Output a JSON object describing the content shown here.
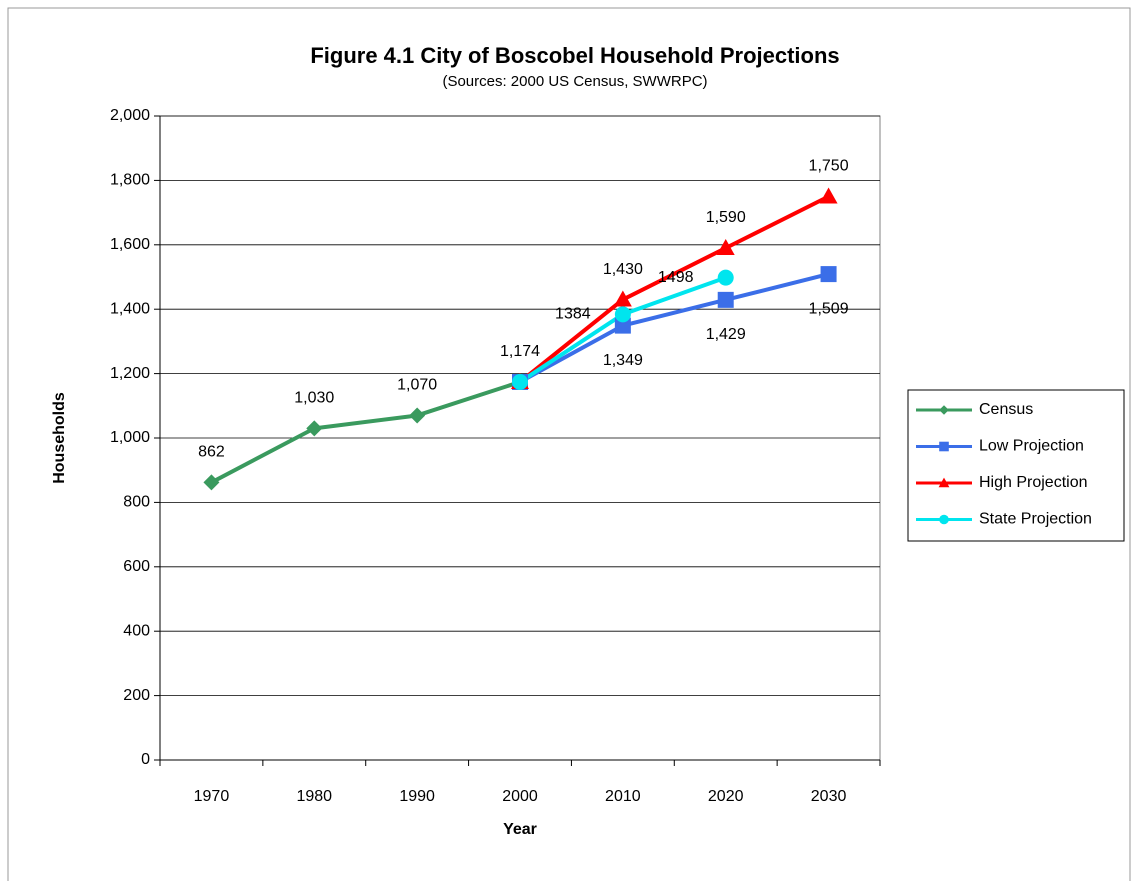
{
  "chart_data": {
    "type": "line",
    "title": "Figure 4.1 City of Boscobel Household Projections",
    "subtitle": "(Sources:  2000 US Census, SWWRPC)",
    "x_label": "Year",
    "y_label": "Households",
    "categories": [
      "1970",
      "1980",
      "1990",
      "2000",
      "2010",
      "2020",
      "2030"
    ],
    "series": [
      {
        "name": "Census",
        "color": "#3a9a5e",
        "marker": "diamond",
        "values": [
          862,
          1030,
          1070,
          1174,
          null,
          null,
          null
        ],
        "value_labels": [
          "862",
          "1,030",
          "1,070",
          "1,174",
          null,
          null,
          null
        ]
      },
      {
        "name": "Low Projection",
        "color": "#3b6ee8",
        "marker": "square",
        "values": [
          null,
          null,
          null,
          1174,
          1349,
          1429,
          1509
        ],
        "value_labels": [
          null,
          null,
          null,
          null,
          "1,349",
          "1,429",
          "1,509"
        ]
      },
      {
        "name": "High Projection",
        "color": "#ff0000",
        "marker": "triangle",
        "values": [
          null,
          null,
          null,
          1174,
          1430,
          1590,
          1750
        ],
        "value_labels": [
          null,
          null,
          null,
          null,
          "1,430",
          "1,590",
          "1,750"
        ]
      },
      {
        "name": "State Projection",
        "color": "#00e5ee",
        "marker": "circle",
        "values": [
          null,
          null,
          null,
          1174,
          1384,
          1498,
          null
        ],
        "value_labels": [
          null,
          null,
          null,
          null,
          "1384",
          "1498",
          null
        ]
      }
    ],
    "ylim": [
      0,
      2000
    ],
    "yticks": [
      0,
      200,
      400,
      600,
      800,
      {
        "value": 1000,
        "label": "1,000"
      },
      {
        "value": 1200,
        "label": "1,200"
      },
      {
        "value": 1400,
        "label": "1,400"
      },
      {
        "value": 1600,
        "label": "1,600"
      },
      {
        "value": 1800,
        "label": "1,800"
      },
      {
        "value": 2000,
        "label": "2,000"
      }
    ],
    "grid": true,
    "legend": "right"
  }
}
